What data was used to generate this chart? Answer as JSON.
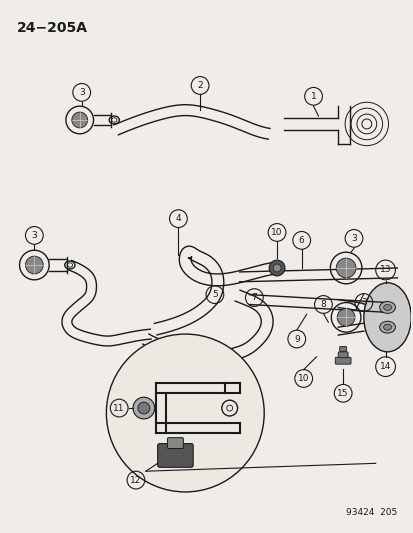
{
  "title": "24−205A",
  "bg_color": "#f0ede8",
  "line_color": "#1a1a1a",
  "footer": "93424  205",
  "fig_w": 4.14,
  "fig_h": 5.33,
  "dpi": 100,
  "lw_hose": 1.8,
  "lw_thin": 1.0,
  "lw_label": 0.8
}
